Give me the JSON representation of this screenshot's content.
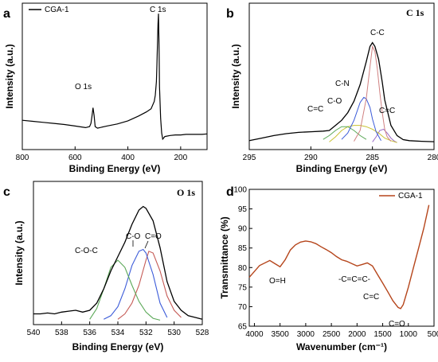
{
  "chart_data": [
    {
      "panel": "a",
      "type": "line",
      "xlabel": "Binding Energy (eV)",
      "ylabel": "Intensity (a.u.)",
      "xlim": [
        800,
        100
      ],
      "x_reversed": true,
      "xticks": [
        800,
        600,
        400,
        200
      ],
      "legend": "CGA-1",
      "legend_position": "top-left",
      "annotations": [
        "O 1s",
        "C 1s"
      ],
      "series": [
        {
          "name": "CGA-1",
          "color": "#000000",
          "x": [
            800,
            760,
            720,
            680,
            640,
            600,
            560,
            545,
            540,
            536,
            532,
            528,
            524,
            515,
            480,
            440,
            400,
            360,
            330,
            312,
            300,
            296,
            292,
            290,
            288,
            286,
            284,
            282,
            280,
            276,
            272,
            268,
            260,
            240,
            220,
            200,
            180,
            160,
            140,
            120,
            100
          ],
          "y": [
            1.8,
            1.7,
            1.6,
            1.5,
            1.4,
            1.25,
            1.1,
            1.2,
            1.5,
            2.2,
            3.0,
            2.3,
            1.2,
            1.05,
            1.25,
            1.45,
            1.75,
            2.2,
            2.6,
            2.9,
            3.6,
            4.2,
            5.5,
            7.0,
            9.0,
            11.0,
            12.0,
            9.0,
            5.0,
            2.0,
            0.6,
            0.0,
            0.25,
            0.35,
            0.4,
            0.4,
            0.45,
            0.45,
            0.45,
            0.45,
            0.5
          ]
        }
      ]
    },
    {
      "panel": "b",
      "type": "line",
      "xlabel": "Binding Energy (eV)",
      "ylabel": "Intensity (a.u.)",
      "xlim": [
        295,
        280
      ],
      "x_reversed": true,
      "xticks": [
        295,
        290,
        285,
        280
      ],
      "title": "C 1s",
      "annotations": [
        "C-C",
        "C-N",
        "C-O",
        "C=C",
        "C=C"
      ],
      "series": [
        {
          "color": "#000000",
          "x": [
            295,
            294,
            293,
            292,
            291,
            290,
            289,
            288.5,
            288,
            287.5,
            287,
            286.5,
            286,
            285.5,
            285.2,
            285,
            284.8,
            284.5,
            284.2,
            284,
            283.5,
            283,
            282.5,
            282,
            281,
            280
          ],
          "y": [
            0.2,
            0.4,
            0.6,
            0.75,
            0.85,
            0.9,
            0.95,
            1.0,
            1.4,
            1.8,
            2.4,
            3.3,
            4.6,
            6.4,
            7.6,
            7.9,
            7.6,
            6.6,
            4.8,
            3.4,
            1.4,
            0.6,
            0.28,
            0.2,
            0.15,
            0.12
          ]
        },
        {
          "color": "#d08080",
          "x": [
            286.5,
            286,
            285.5,
            285.2,
            285,
            284.8,
            284.6,
            284.4,
            284.2,
            284,
            283.8,
            283.5
          ],
          "y": [
            0.15,
            1.0,
            3.5,
            6.0,
            7.6,
            7.2,
            5.8,
            4.0,
            2.4,
            1.1,
            0.5,
            0.15
          ]
        },
        {
          "color": "#3b5bd9",
          "x": [
            287.5,
            287,
            286.5,
            286,
            285.7,
            285.5,
            285.2,
            285,
            284.7,
            284.3
          ],
          "y": [
            0.3,
            0.8,
            1.8,
            3.2,
            3.6,
            3.5,
            2.8,
            1.9,
            0.9,
            0.2
          ]
        },
        {
          "color": "#5aa857",
          "x": [
            289,
            288.5,
            288,
            287.5,
            287,
            286.5,
            286,
            285.5
          ],
          "y": [
            0.3,
            0.6,
            1.0,
            1.3,
            1.3,
            1.0,
            0.6,
            0.3
          ]
        },
        {
          "color": "#c9c231",
          "x": [
            288.5,
            288,
            287.5,
            287,
            286.5,
            286,
            285.5,
            285,
            284.5,
            284,
            283.5,
            283
          ],
          "y": [
            0.1,
            0.5,
            1.0,
            1.3,
            1.4,
            1.4,
            1.3,
            1.1,
            0.8,
            0.4,
            0.2,
            0.05
          ]
        },
        {
          "color": "#9a6cc8",
          "x": [
            285,
            284.7,
            284.4,
            284.1,
            283.8,
            283.5,
            283.2,
            283
          ],
          "y": [
            0.1,
            0.5,
            1.0,
            1.1,
            0.8,
            0.4,
            0.15,
            0.05
          ]
        }
      ]
    },
    {
      "panel": "c",
      "type": "line",
      "xlabel": "Binding Energy (eV)",
      "ylabel": "Intensity (a.u.)",
      "xlim": [
        540,
        528
      ],
      "x_reversed": true,
      "xticks": [
        540,
        538,
        536,
        534,
        532,
        530,
        528
      ],
      "title": "O 1s",
      "annotations": [
        "C-O-C",
        "C-O",
        "C=O"
      ],
      "series": [
        {
          "color": "#000000",
          "x": [
            540,
            539.5,
            539,
            538.5,
            538,
            537.5,
            537,
            536.5,
            536,
            535.5,
            535,
            534.5,
            534,
            533.5,
            533,
            532.5,
            532.2,
            532,
            531.5,
            531,
            530.5,
            530,
            529.5,
            529,
            528.5,
            528
          ],
          "y": [
            0.6,
            0.6,
            0.65,
            0.6,
            0.7,
            0.75,
            0.8,
            0.7,
            0.8,
            1.2,
            2.0,
            3.0,
            3.8,
            4.6,
            5.6,
            6.4,
            6.6,
            6.5,
            5.8,
            4.3,
            2.4,
            1.3,
            0.8,
            0.5,
            0.4,
            0.3
          ]
        },
        {
          "color": "#5aa857",
          "x": [
            536,
            535.5,
            535,
            534.5,
            534,
            533.5,
            533,
            532.5,
            532,
            531.5,
            531
          ],
          "y": [
            0.3,
            0.9,
            2.0,
            3.2,
            3.6,
            3.2,
            2.2,
            1.3,
            0.7,
            0.35,
            0.25
          ]
        },
        {
          "color": "#3b5bd9",
          "x": [
            535,
            534.5,
            534,
            533.5,
            533,
            532.5,
            532.2,
            532,
            531.5,
            531,
            530.5
          ],
          "y": [
            0.3,
            0.5,
            1.0,
            2.0,
            3.3,
            4.1,
            4.2,
            4.0,
            2.8,
            1.2,
            0.4
          ]
        },
        {
          "color": "#c55a55",
          "x": [
            534,
            533.5,
            533,
            532.5,
            532,
            531.8,
            531.5,
            531,
            530.5,
            530,
            529.5
          ],
          "y": [
            0.3,
            0.6,
            1.2,
            2.2,
            3.6,
            4.1,
            4.0,
            3.0,
            1.6,
            0.8,
            0.4
          ]
        }
      ]
    },
    {
      "panel": "d",
      "type": "line",
      "xlabel": "Wavenumber (cm⁻¹)",
      "ylabel": "Transmittance (%)",
      "xlim": [
        4100,
        500
      ],
      "x_reversed": true,
      "ylim": [
        65,
        100
      ],
      "xticks": [
        4000,
        3500,
        3000,
        2500,
        2000,
        1500,
        1000,
        500
      ],
      "yticks": [
        65,
        70,
        75,
        80,
        85,
        90,
        95,
        100
      ],
      "legend": "CGA-1",
      "legend_position": "top-right",
      "annotations": [
        "O=H",
        "-C=C=C-",
        "C=C",
        "C=O"
      ],
      "series": [
        {
          "name": "CGA-1",
          "color": "#b5451b",
          "x": [
            4100,
            3900,
            3700,
            3600,
            3500,
            3400,
            3300,
            3200,
            3100,
            3000,
            2900,
            2800,
            2700,
            2600,
            2500,
            2400,
            2300,
            2200,
            2100,
            2000,
            1900,
            1800,
            1700,
            1600,
            1500,
            1400,
            1300,
            1200,
            1150,
            1100,
            1000,
            900,
            800,
            700,
            600
          ],
          "y": [
            77.5,
            80.5,
            81.8,
            81.0,
            80.2,
            82.0,
            84.5,
            85.8,
            86.5,
            86.8,
            86.6,
            86.1,
            85.3,
            84.6,
            83.8,
            82.8,
            82.0,
            81.6,
            81.0,
            80.4,
            80.8,
            81.2,
            80.4,
            78.2,
            76.0,
            73.8,
            71.5,
            69.8,
            69.5,
            70.5,
            75.0,
            80.0,
            85.0,
            90.0,
            96.0
          ]
        }
      ]
    }
  ]
}
